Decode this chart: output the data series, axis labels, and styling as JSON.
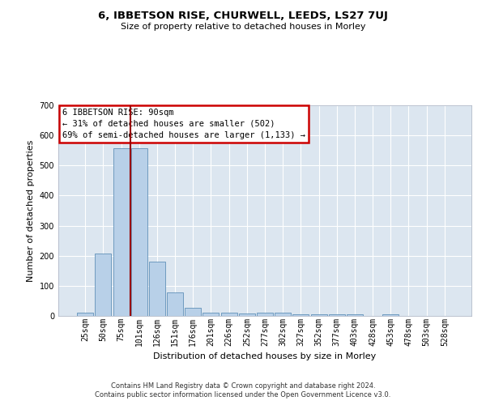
{
  "title": "6, IBBETSON RISE, CHURWELL, LEEDS, LS27 7UJ",
  "subtitle": "Size of property relative to detached houses in Morley",
  "xlabel": "Distribution of detached houses by size in Morley",
  "ylabel": "Number of detached properties",
  "footer_line1": "Contains HM Land Registry data © Crown copyright and database right 2024.",
  "footer_line2": "Contains public sector information licensed under the Open Government Licence v3.0.",
  "annotation_line1": "6 IBBETSON RISE: 90sqm",
  "annotation_line2": "← 31% of detached houses are smaller (502)",
  "annotation_line3": "69% of semi-detached houses are larger (1,133) →",
  "bar_color": "#b8d0e8",
  "bar_edge_color": "#6090b8",
  "vline_color": "#990000",
  "plot_bg_color": "#dce6f0",
  "ylim": [
    0,
    700
  ],
  "yticks": [
    0,
    100,
    200,
    300,
    400,
    500,
    600,
    700
  ],
  "categories": [
    "25sqm",
    "50sqm",
    "75sqm",
    "101sqm",
    "126sqm",
    "151sqm",
    "176sqm",
    "201sqm",
    "226sqm",
    "252sqm",
    "277sqm",
    "302sqm",
    "327sqm",
    "352sqm",
    "377sqm",
    "403sqm",
    "428sqm",
    "453sqm",
    "478sqm",
    "503sqm",
    "528sqm"
  ],
  "values": [
    12,
    207,
    556,
    557,
    180,
    78,
    28,
    12,
    10,
    8,
    10,
    10,
    6,
    5,
    5,
    5,
    0,
    6,
    0,
    0,
    0
  ],
  "vline_x": 2.5,
  "title_fontsize": 9.5,
  "subtitle_fontsize": 8,
  "ylabel_fontsize": 8,
  "xlabel_fontsize": 8,
  "tick_fontsize": 7,
  "annotation_fontsize": 7.5,
  "footer_fontsize": 6
}
